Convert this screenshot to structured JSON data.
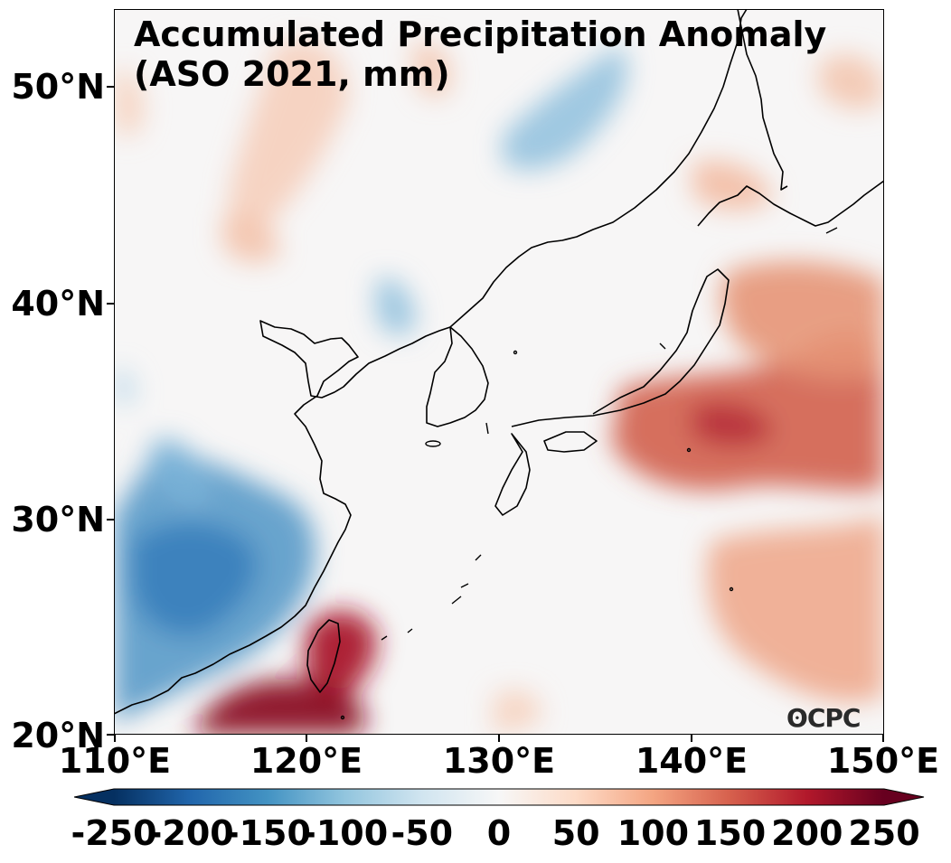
{
  "map": {
    "title": "Accumulated Precipitation Anomaly\n(ASO 2021, mm)",
    "lat_labels": [
      "50°N",
      "40°N",
      "30°N",
      "20°N"
    ],
    "lon_labels": [
      "110°E",
      "120°E",
      "130°E",
      "140°E",
      "150°E"
    ],
    "extent": {
      "lon": [
        110,
        150
      ],
      "lat": [
        20,
        53.5
      ]
    },
    "credit": "CPC",
    "colors": {
      "dry": "#2166ac",
      "neutral": "#f7f7f7",
      "wet": "#b2182b"
    }
  },
  "colorbar": {
    "range": [
      -250,
      250
    ],
    "tick_labels": [
      "-250",
      "-200",
      "-150",
      "-100",
      "-50",
      "0",
      "50",
      "100",
      "150",
      "200",
      "250"
    ],
    "colormap": "RdBu_r",
    "extend": "both"
  }
}
